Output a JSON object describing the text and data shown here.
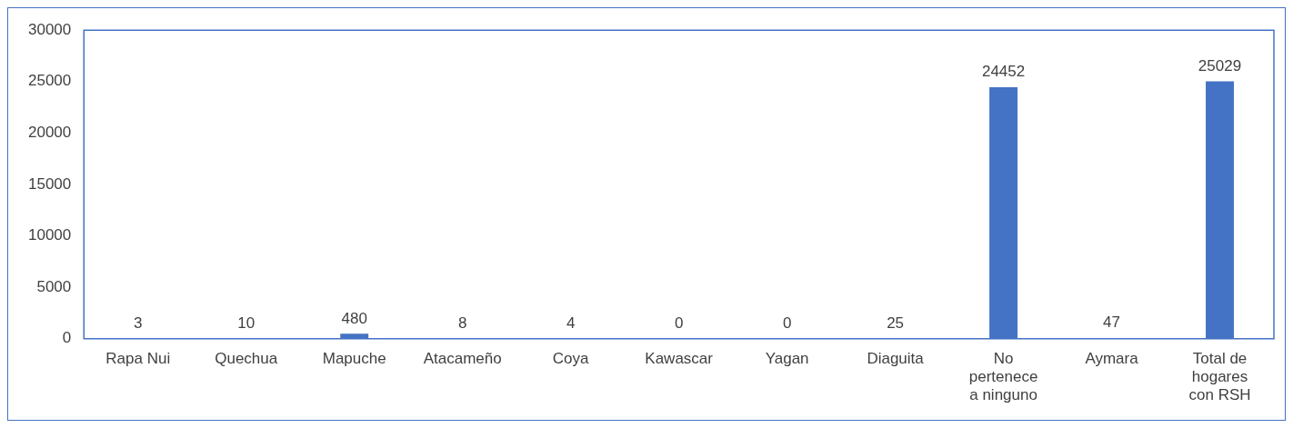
{
  "chart_data": {
    "type": "bar",
    "categories": [
      "Rapa Nui",
      "Quechua",
      "Mapuche",
      "Atacameño",
      "Coya",
      "Kawascar",
      "Yagan",
      "Diaguita",
      "No pertenece a ninguno",
      "Aymara",
      "Total de hogares con RSH"
    ],
    "values": [
      3,
      10,
      480,
      8,
      4,
      0,
      0,
      25,
      24452,
      47,
      25029
    ],
    "color": "#4472c4",
    "ylim": [
      0,
      30000
    ],
    "yticks": [
      0,
      5000,
      10000,
      15000,
      20000,
      25000,
      30000
    ],
    "grid": false,
    "legend": false,
    "data_labels": true
  }
}
